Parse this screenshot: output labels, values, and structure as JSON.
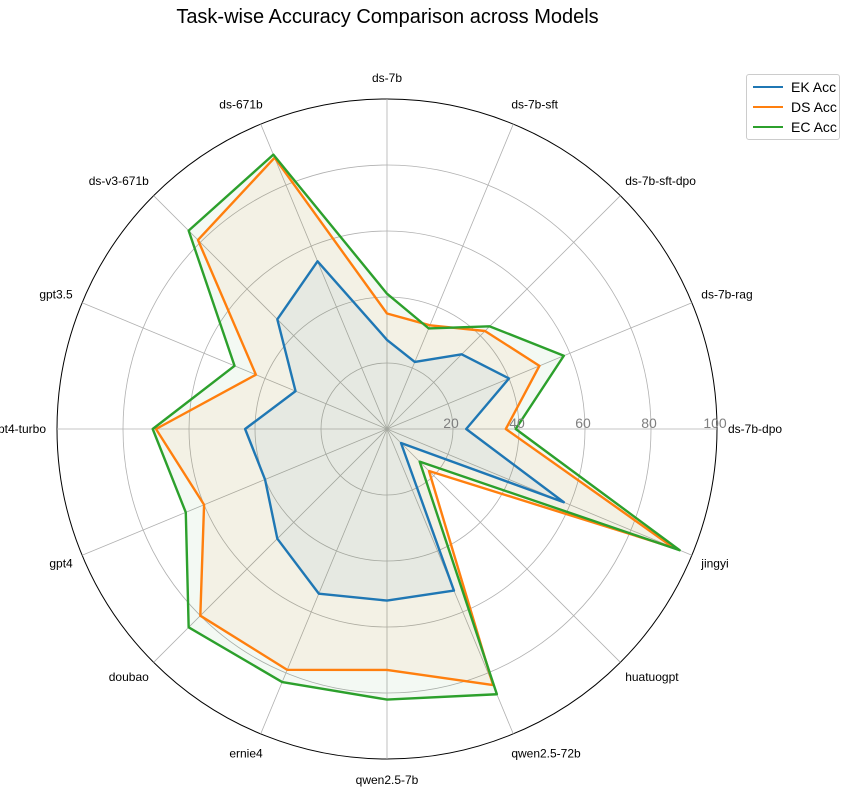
{
  "chart_data": {
    "type": "radar",
    "title": "Task-wise Accuracy Comparison across Models",
    "categories": [
      "ds-7b-dpo",
      "ds-7b-rag",
      "ds-7b-sft-dpo",
      "ds-7b-sft",
      "ds-7b",
      "ds-671b",
      "ds-v3-671b",
      "gpt3.5",
      "gpt4-turbo",
      "gpt4",
      "doubao",
      "ernie4",
      "qwen2.5-7b",
      "qwen2.5-72b",
      "huatuogpt",
      "jingyi"
    ],
    "rlim": [
      0,
      100
    ],
    "rticks": [
      "20",
      "40",
      "60",
      "80",
      "100"
    ],
    "grid": true,
    "legend_position": "upper-right",
    "series": [
      {
        "name": "EK Acc",
        "color": "#1f77b4",
        "values": [
          24,
          40,
          32,
          22,
          27,
          55,
          47,
          30,
          43,
          40,
          47,
          54,
          52,
          53,
          6,
          58
        ]
      },
      {
        "name": "DS Acc",
        "color": "#ff7f0e",
        "values": [
          36,
          50,
          42,
          34,
          35,
          89,
          81,
          43,
          70,
          60,
          80,
          79,
          73,
          84,
          18,
          94
        ]
      },
      {
        "name": "EC Acc",
        "color": "#2ca02c",
        "values": [
          39,
          58,
          44,
          33,
          41,
          90,
          85,
          50,
          71,
          66,
          85,
          83,
          82,
          87,
          14,
          96
        ]
      }
    ]
  }
}
